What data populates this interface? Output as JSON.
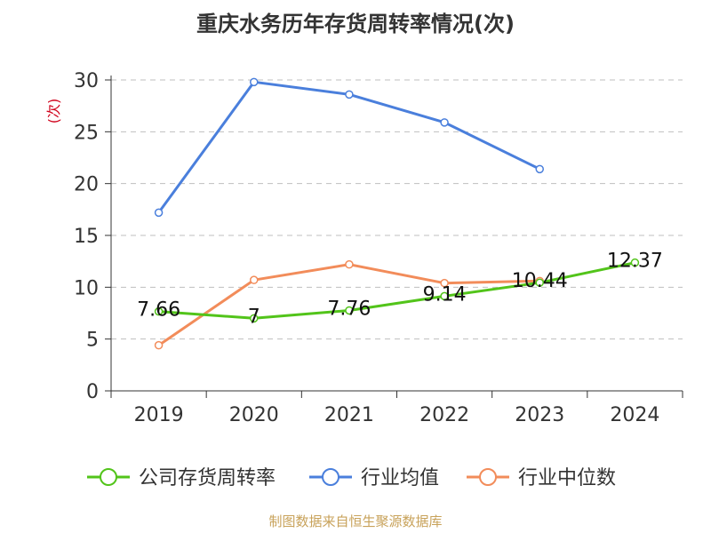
{
  "chart_data": {
    "type": "line",
    "title": "重庆水务历年存货周转率情况(次)",
    "ylabel": "(次)",
    "categories": [
      "2019",
      "2020",
      "2021",
      "2022",
      "2023",
      "2024"
    ],
    "ylim": [
      0,
      30
    ],
    "yticks": [
      0,
      5,
      10,
      15,
      20,
      25,
      30
    ],
    "grid": true,
    "legend_position": "bottom",
    "series": [
      {
        "name": "公司存货周转率",
        "color": "#52c41a",
        "values": [
          7.66,
          7,
          7.76,
          9.14,
          10.44,
          12.37
        ],
        "labels": [
          "7.66",
          "7",
          "7.76",
          "9.14",
          "10.44",
          "12.37"
        ]
      },
      {
        "name": "行业均值",
        "color": "#4a7fdc",
        "values": [
          17.2,
          29.8,
          28.6,
          25.9,
          21.4,
          null
        ]
      },
      {
        "name": "行业中位数",
        "color": "#f28c5a",
        "values": [
          4.4,
          10.7,
          12.2,
          10.4,
          10.6,
          null
        ]
      }
    ]
  },
  "source": "制图数据来自恒生聚源数据库"
}
